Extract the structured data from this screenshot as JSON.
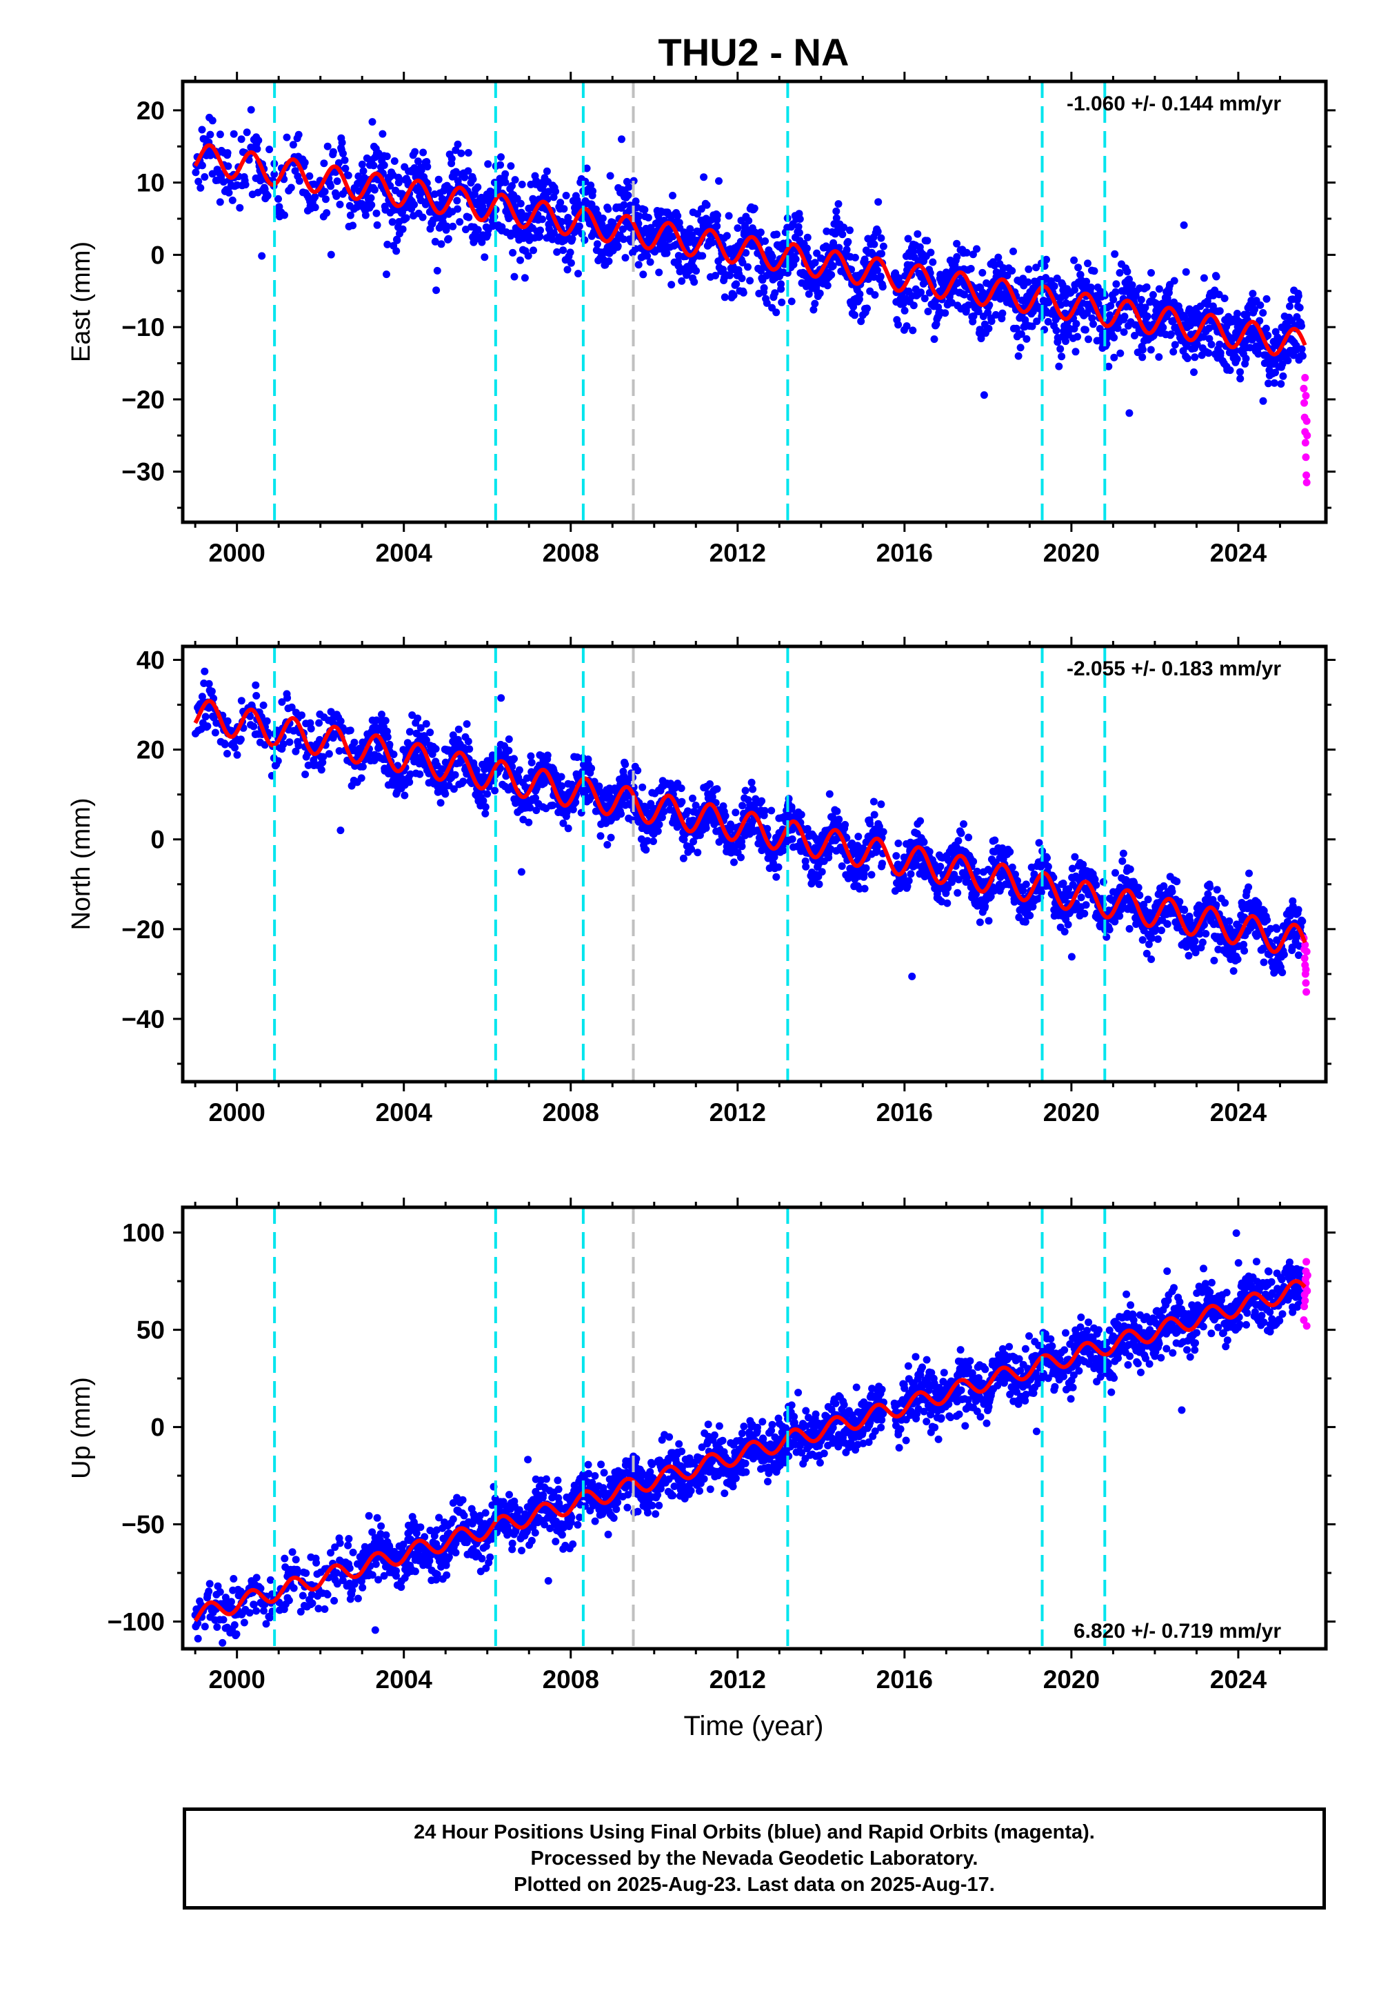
{
  "title": "THU2 - NA",
  "xlabel": "Time (year)",
  "colors": {
    "final_orbits": "#0000ff",
    "rapid_orbits": "#ff00ff",
    "model_fit": "#ff0000",
    "equipment_change": "#00e5ee",
    "other_event": "#c0c0c0"
  },
  "chart_data": [
    {
      "type": "scatter",
      "panel": "East",
      "ylabel": "East (mm)",
      "rate_label": "-1.060 +/- 0.144 mm/yr",
      "rate_position": "top-right",
      "xlim": [
        1998.7,
        2026.1
      ],
      "ylim": [
        -37,
        24
      ],
      "x_ticks": [
        2000,
        2004,
        2008,
        2012,
        2016,
        2020,
        2024
      ],
      "y_ticks": [
        -30,
        -20,
        -10,
        0,
        10,
        20
      ],
      "vlines_cyan": [
        2000.9,
        2006.2,
        2008.3,
        2013.2,
        2019.3,
        2020.8
      ],
      "vlines_gray": [
        2009.5
      ],
      "fit_start": [
        1999.0,
        13.5
      ],
      "fit_end": [
        2025.6,
        -12.5
      ],
      "seasonal_amplitude": 2.0,
      "gap": [
        2015.5,
        2015.75
      ],
      "final_orbit_points": {
        "x_range": [
          1999.0,
          2025.55
        ],
        "scatter_mm": 2.5
      },
      "rapid_orbit_points": [
        [
          2025.57,
          -18.5
        ],
        [
          2025.58,
          -20.5
        ],
        [
          2025.59,
          -22.5
        ],
        [
          2025.6,
          -24.5
        ],
        [
          2025.61,
          -26.0
        ],
        [
          2025.62,
          -28.0
        ],
        [
          2025.63,
          -30.5
        ],
        [
          2025.64,
          -31.5
        ],
        [
          2025.6,
          -17.0
        ],
        [
          2025.62,
          -19.5
        ],
        [
          2025.64,
          -23.0
        ],
        [
          2025.65,
          -25.0
        ]
      ]
    },
    {
      "type": "scatter",
      "panel": "North",
      "ylabel": "North (mm)",
      "rate_label": "-2.055 +/- 0.183 mm/yr",
      "rate_position": "top-right",
      "xlim": [
        1998.7,
        2026.1
      ],
      "ylim": [
        -54,
        43
      ],
      "x_ticks": [
        2000,
        2004,
        2008,
        2012,
        2016,
        2020,
        2024
      ],
      "y_ticks": [
        -40,
        -20,
        0,
        20,
        40
      ],
      "vlines_cyan": [
        2000.9,
        2006.2,
        2008.3,
        2013.2,
        2019.3,
        2020.8
      ],
      "vlines_gray": [
        2009.5
      ],
      "fit_start": [
        1999.0,
        28.0
      ],
      "fit_end": [
        2025.6,
        -23.0
      ],
      "seasonal_amplitude": 3.5,
      "gap": [
        2015.5,
        2015.75
      ],
      "final_orbit_points": {
        "x_range": [
          1999.0,
          2025.55
        ],
        "scatter_mm": 3.0
      },
      "rapid_orbit_points": [
        [
          2025.57,
          -22.0
        ],
        [
          2025.58,
          -24.5
        ],
        [
          2025.59,
          -26.5
        ],
        [
          2025.6,
          -28.0
        ],
        [
          2025.61,
          -30.0
        ],
        [
          2025.62,
          -32.0
        ],
        [
          2025.63,
          -34.0
        ],
        [
          2025.64,
          -25.0
        ],
        [
          2025.6,
          -23.5
        ],
        [
          2025.62,
          -29.0
        ]
      ]
    },
    {
      "type": "scatter",
      "panel": "Up",
      "ylabel": "Up (mm)",
      "rate_label": "6.820 +/- 0.719 mm/yr",
      "rate_position": "bottom-right",
      "xlim": [
        1998.7,
        2026.1
      ],
      "ylim": [
        -114,
        113
      ],
      "x_ticks": [
        2000,
        2004,
        2008,
        2012,
        2016,
        2020,
        2024
      ],
      "y_ticks": [
        -100,
        -50,
        0,
        50,
        100
      ],
      "vlines_cyan": [
        2000.9,
        2006.2,
        2008.3,
        2013.2,
        2019.3,
        2020.8
      ],
      "vlines_gray": [
        2009.5
      ],
      "fit_start": [
        1999.0,
        -97.0
      ],
      "fit_end": [
        2025.6,
        72.0
      ],
      "seasonal_amplitude": 4.5,
      "gap": [
        2015.5,
        2015.75
      ],
      "final_orbit_points": {
        "x_range": [
          1999.0,
          2025.55
        ],
        "scatter_mm": 7.0
      },
      "rapid_orbit_points": [
        [
          2025.57,
          55.0
        ],
        [
          2025.58,
          62.0
        ],
        [
          2025.59,
          68.0
        ],
        [
          2025.6,
          72.0
        ],
        [
          2025.61,
          76.0
        ],
        [
          2025.62,
          80.0
        ],
        [
          2025.63,
          85.0
        ],
        [
          2025.64,
          52.0
        ],
        [
          2025.6,
          65.0
        ],
        [
          2025.62,
          74.0
        ],
        [
          2025.65,
          70.0
        ],
        [
          2025.66,
          78.0
        ]
      ]
    }
  ],
  "footer": {
    "line1": "24 Hour Positions Using Final Orbits (blue) and Rapid Orbits (magenta).",
    "line2": "Processed by the Nevada Geodetic Laboratory.",
    "line3": "Plotted on 2025-Aug-23. Last data on 2025-Aug-17."
  }
}
